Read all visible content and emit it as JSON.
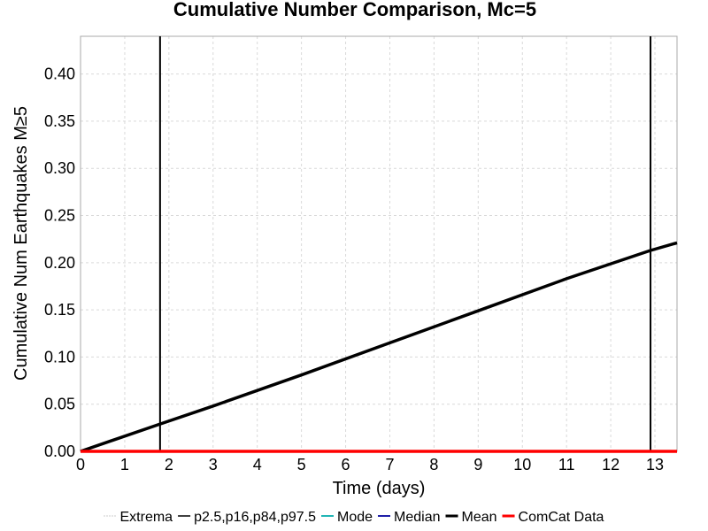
{
  "chart_data": {
    "type": "line",
    "title": "Cumulative Number Comparison, Mc=5",
    "xlabel": "Time (days)",
    "ylabel": "Cumulative Num Earthquakes M≥5",
    "xlim": [
      0,
      13.5
    ],
    "ylim": [
      0,
      0.44
    ],
    "xticks": [
      0,
      1,
      2,
      3,
      4,
      5,
      6,
      7,
      8,
      9,
      10,
      11,
      12,
      13
    ],
    "xtick_labels": [
      "0",
      "1",
      "2",
      "3",
      "4",
      "5",
      "6",
      "7",
      "8",
      "9",
      "10",
      "11",
      "12",
      "13"
    ],
    "yticks": [
      0,
      0.05,
      0.1,
      0.15,
      0.2,
      0.25,
      0.3,
      0.35,
      0.4
    ],
    "ytick_labels": [
      "0.00",
      "0.05",
      "0.10",
      "0.15",
      "0.20",
      "0.25",
      "0.30",
      "0.35",
      "0.40"
    ],
    "grid": true,
    "legend_position": "bottom",
    "series": [
      {
        "name": "Extrema",
        "style": "dotted",
        "color": "#999999",
        "width": 1,
        "points": []
      },
      {
        "name": "p2.5,p16,p84,p97.5",
        "style": "solid",
        "color": "#000000",
        "width": 1.5,
        "points": []
      },
      {
        "name": "Mode",
        "style": "solid",
        "color": "#22b5b5",
        "width": 2,
        "points": []
      },
      {
        "name": "Median",
        "style": "solid",
        "color": "#1f1fa8",
        "width": 2,
        "points": []
      },
      {
        "name": "Mean",
        "style": "solid",
        "color": "#000000",
        "width": 3.5,
        "points": [
          [
            0,
            0
          ],
          [
            1.8,
            0.029
          ],
          [
            3,
            0.048
          ],
          [
            5,
            0.081
          ],
          [
            7,
            0.115
          ],
          [
            9,
            0.149
          ],
          [
            11,
            0.183
          ],
          [
            12.9,
            0.213
          ],
          [
            13.5,
            0.221
          ]
        ]
      },
      {
        "name": "ComCat Data",
        "style": "solid",
        "color": "#ff0000",
        "width": 3.5,
        "points": [
          [
            0,
            0
          ],
          [
            13.5,
            0
          ]
        ]
      }
    ],
    "vertical_lines": [
      {
        "x": 1.8,
        "color": "#000000",
        "width": 2
      },
      {
        "x": 12.9,
        "color": "#000000",
        "width": 2
      }
    ]
  }
}
